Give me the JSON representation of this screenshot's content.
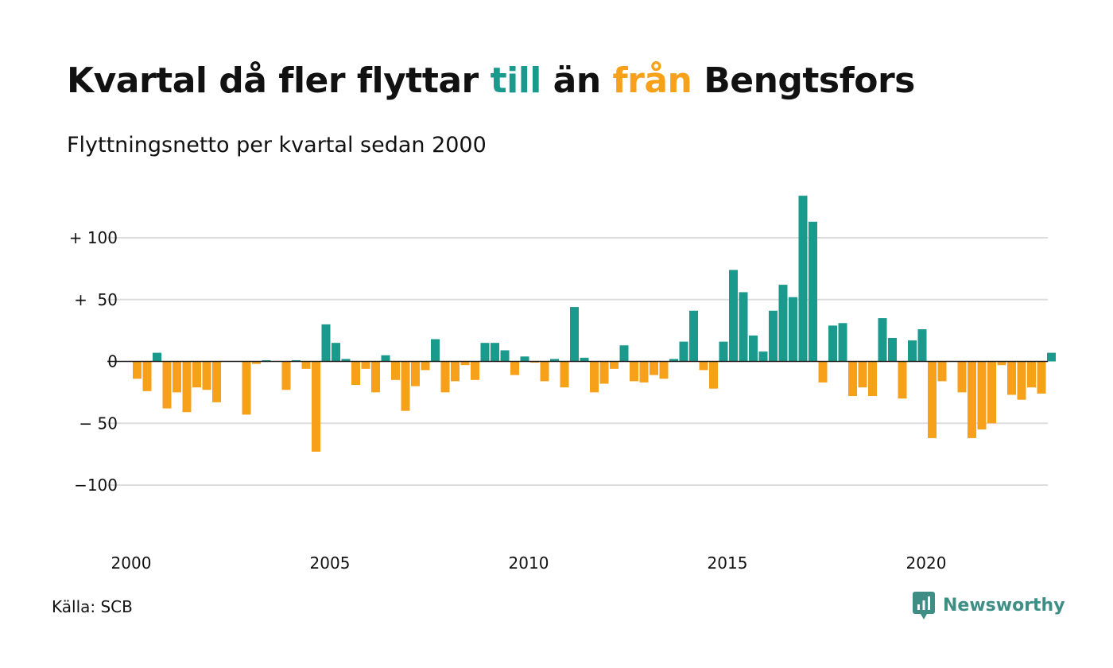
{
  "title": {
    "part1": "Kvartal då fler flyttar ",
    "part2": "till",
    "part3": " än ",
    "part4": "från",
    "part5": " Bengtsfors"
  },
  "subtitle": "Flyttningsnetto per kvartal sedan 2000",
  "source": "Källa: SCB",
  "brand": "Newsworthy",
  "colors": {
    "positive": "#1a9a8c",
    "negative": "#f7a11a",
    "grid": "#dddddd",
    "zero_line": "#222222",
    "text": "#111111",
    "brand": "#3e8e86"
  },
  "chart_data": {
    "type": "bar",
    "x_start_year": 2000,
    "x_tick_labels": [
      "2000",
      "2005",
      "2010",
      "2015",
      "2020"
    ],
    "y_tick_values": [
      100,
      50,
      0,
      -50,
      -100
    ],
    "y_tick_labels": [
      "+ 100",
      "+  50",
      "0",
      "− 50",
      "−100"
    ],
    "ylim": [
      -150,
      140
    ],
    "grid": true,
    "values": [
      -14,
      -24,
      7,
      -38,
      -25,
      -41,
      -21,
      -23,
      -33,
      0,
      0,
      -43,
      -2,
      1,
      0,
      -23,
      1,
      -6,
      -73,
      30,
      15,
      2,
      -19,
      -6,
      -25,
      5,
      -15,
      -40,
      -20,
      -7,
      18,
      -25,
      -16,
      -3,
      -15,
      15,
      15,
      9,
      -11,
      4,
      -1,
      -16,
      2,
      -21,
      44,
      3,
      -25,
      -18,
      -6,
      13,
      -16,
      -17,
      -11,
      -14,
      2,
      16,
      41,
      -7,
      -22,
      16,
      74,
      56,
      21,
      8,
      41,
      62,
      52,
      134,
      113,
      -17,
      29,
      31,
      -28,
      -21,
      -28,
      35,
      19,
      -30,
      17,
      26,
      -62,
      -16,
      0,
      -25,
      -62,
      -55,
      -50,
      -3,
      -27,
      -31,
      -21,
      -26,
      7
    ]
  }
}
